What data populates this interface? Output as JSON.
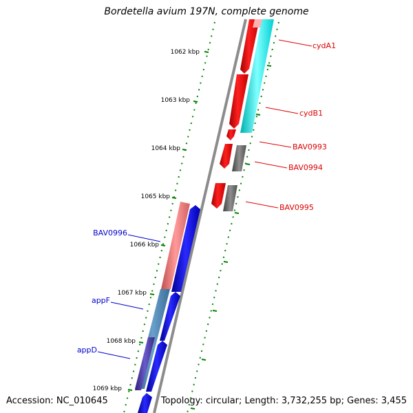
{
  "title": "Bordetella avium 197N, complete genome",
  "footer": {
    "accession": "Accession: NC_010645",
    "topology": "Topology: circular; Length: 3,732,255 bp; Genes: 3,455"
  },
  "scale": {
    "unit": "kbp",
    "ticks": [
      "1062 kbp",
      "1063 kbp",
      "1064 kbp",
      "1065 kbp",
      "1066 kbp",
      "1067 kbp",
      "1068 kbp",
      "1069 kbp"
    ]
  },
  "colors": {
    "forward_strand": "#ff0000",
    "forward_light": "#f08080",
    "forward_track2": "#00ffff",
    "reverse_strand": "#0000ff",
    "reverse_track2": "#4682b4",
    "pseudo": "#707070",
    "scale_ticks": "#008000",
    "backbone": "#808080"
  },
  "genes": [
    {
      "label": "cydA1",
      "strand": "forward",
      "color": "#ff0000"
    },
    {
      "label": "cydB1",
      "strand": "forward",
      "color": "#ff0000"
    },
    {
      "label": "BAV0993",
      "strand": "forward",
      "color": "#ff0000"
    },
    {
      "label": "BAV0994",
      "strand": "forward",
      "color": "#ff0000"
    },
    {
      "label": "BAV0995",
      "strand": "forward",
      "color": "#ff0000"
    },
    {
      "label": "BAV0996",
      "strand": "reverse",
      "color": "#0000cc"
    },
    {
      "label": "appF",
      "strand": "reverse",
      "color": "#0000cc"
    },
    {
      "label": "appD",
      "strand": "reverse",
      "color": "#0000cc"
    }
  ]
}
